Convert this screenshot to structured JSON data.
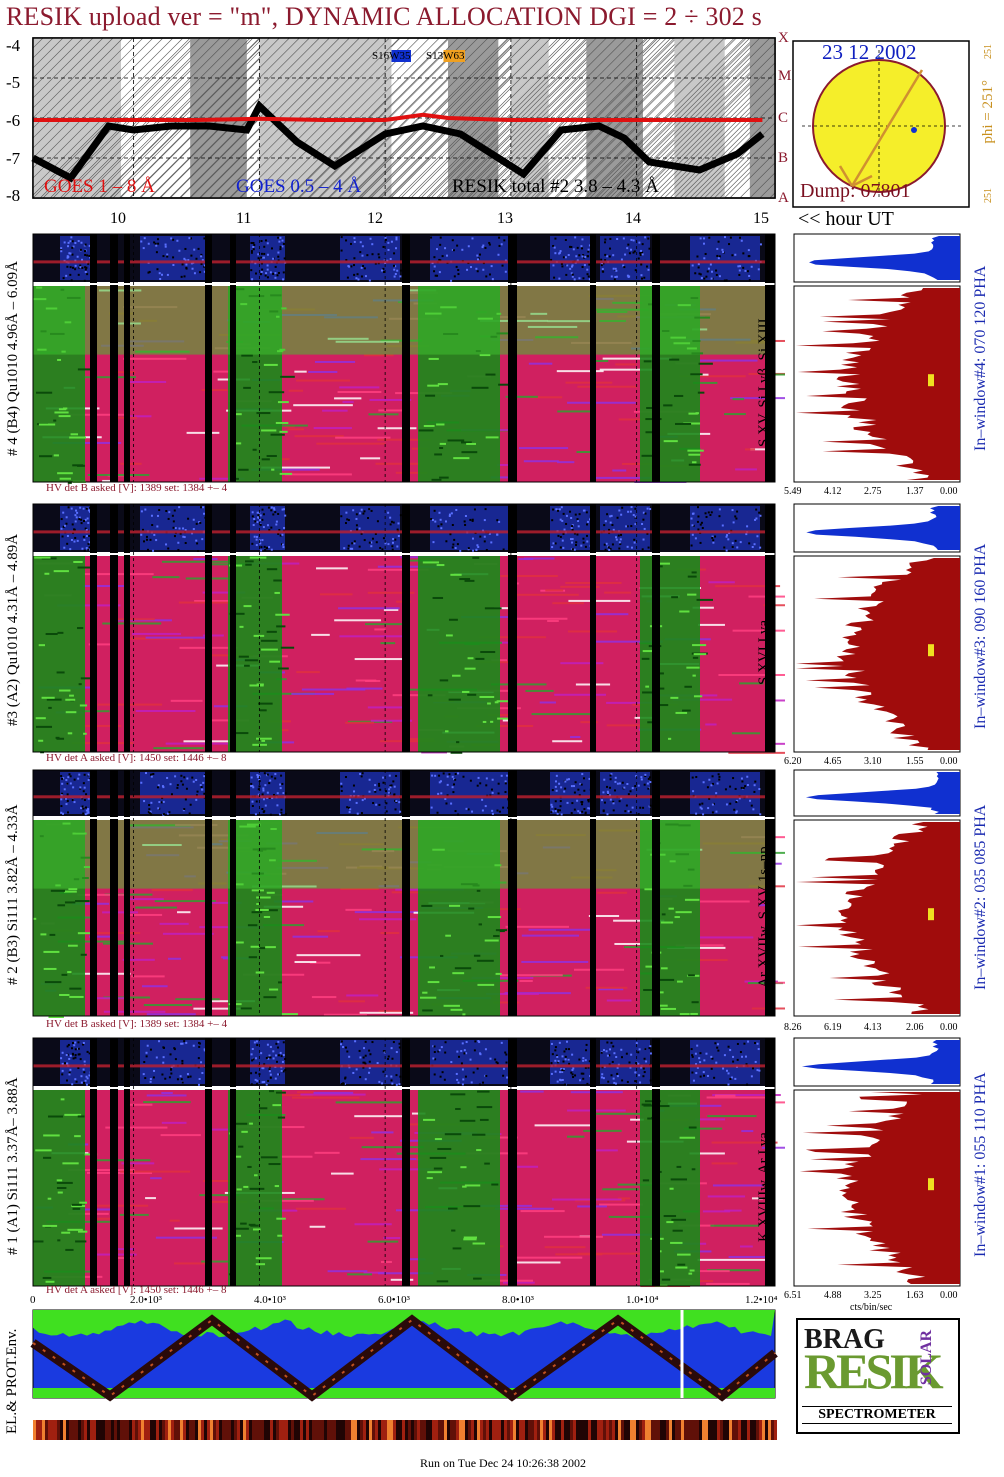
{
  "header": {
    "title": "RESIK upload ver = \"m\", DYNAMIC ALLOCATION  DGI =   2 ÷ 302 s"
  },
  "sun": {
    "date": "23 12 2002",
    "dump": "Dump: 07801",
    "phi_label": "phi = 251°",
    "phi_top": "251",
    "phi_bottom": "251",
    "region_1": "S16W35",
    "region_2": "S13W63",
    "region_1_color": "#1030d0",
    "region_2_color": "#f0a020"
  },
  "goes": {
    "legend_1": "GOES 1 – 8 Å",
    "legend_2": "GOES 0.5 – 4 Å",
    "legend_3": "RESIK total #2  3.8 – 4.3 Å",
    "legend_1_color": "#e01010",
    "legend_2_color": "#1020d0",
    "yticks": [
      "-4",
      "-5",
      "-6",
      "-7",
      "-8"
    ],
    "classes": [
      "X",
      "M",
      "C",
      "B",
      "A"
    ]
  },
  "hours": {
    "ticks": [
      "10",
      "11",
      "12",
      "13",
      "14",
      "15"
    ],
    "label": "<< hour UT"
  },
  "windows": [
    {
      "chan_label": "# 4 (B4) Qu1010 4.96Å – 6.09Å",
      "hv": "HV det B asked [V]:  1389 set:  1384  +–    4",
      "line_label": "S XV, Si Lyβ, Si XIII",
      "pha_label": "In–window#4:  070 120 PHA",
      "ticks": [
        "5.49",
        "4.12",
        "2.75",
        "1.37",
        "0.00"
      ]
    },
    {
      "chan_label": "#3 (A2) Qu1010  4.31Å – 4.89Å",
      "hv": "HV det A asked [V]:  1450 set:  1446  +–    8",
      "line_label": "S XVI Lya",
      "pha_label": "In–window#3:  090 160 PHA",
      "ticks": [
        "6.20",
        "4.65",
        "3.10",
        "1.55",
        "0.00"
      ]
    },
    {
      "chan_label": "# 2 (B3) Si111  3.82Å – 4.33Å",
      "hv": "HV det B asked [V]:  1389 set:  1384  +–    4",
      "line_label": "Ar XVIIw,  S XV 1s–np",
      "pha_label": "In–window#2:  035 085 PHA",
      "ticks": [
        "8.26",
        "6.19",
        "4.13",
        "2.06",
        "0.00"
      ]
    },
    {
      "chan_label": "# 1 (A1) Si111  3.37Å– 3.88Å",
      "hv": "HV det A asked [V]:  1450 set:  1446  +–    8",
      "line_label": "K XVIIIw, Ar Lya",
      "pha_label": "In–window#1:  055 110 PHA",
      "ticks": [
        "6.51",
        "4.88",
        "3.25",
        "1.63",
        "0.00"
      ]
    }
  ],
  "cts_label": "cts/bin/sec",
  "bottom_axis": {
    "ticks": [
      "0",
      "2.0•10³",
      "4.0•10³",
      "6.0•10³",
      "8.0•10³",
      "1.0•10⁴",
      "1.2•10⁴"
    ]
  },
  "env_label": "EL.& PROT.Env.",
  "logo": {
    "word_1": "BRAG",
    "word_2": "RESIK",
    "word_3": "SOLAR",
    "word_4": "SPECTROMETER"
  },
  "footer": "Run on Tue Dec 24 10:26:38 2002",
  "chart_data": {
    "type": "line",
    "title": "RESIK upload ver = \"m\", DYNAMIC ALLOCATION  DGI =   2 ÷ 302 s",
    "xlabel": "<< hour UT",
    "ylabel": "",
    "x_range_hours": [
      9.2,
      15.1
    ],
    "y_range_log": [
      -8,
      -4
    ],
    "series": [
      {
        "name": "GOES 1 – 8 Å",
        "x": [
          9.2,
          9.5,
          10.0,
          10.5,
          11.0,
          11.5,
          12.0,
          12.3,
          12.5,
          13.0,
          13.5,
          14.0,
          14.5,
          15.0
        ],
        "values": [
          -6.05,
          -6.05,
          -6.05,
          -6.05,
          -6.02,
          -6.05,
          -6.05,
          -5.92,
          -6.0,
          -6.05,
          -6.05,
          -6.05,
          -6.05,
          -6.05
        ]
      },
      {
        "name": "RESIK total #2  3.8 – 4.3 Å",
        "x": [
          9.2,
          9.5,
          9.8,
          10.0,
          10.3,
          10.6,
          10.9,
          11.0,
          11.3,
          11.6,
          12.0,
          12.3,
          12.6,
          12.9,
          13.1,
          13.4,
          13.7,
          13.9,
          14.1,
          14.5,
          14.8,
          15.0
        ],
        "values": [
          -7.0,
          -7.5,
          -6.2,
          -6.3,
          -6.2,
          -6.2,
          -6.3,
          -5.7,
          -6.6,
          -7.2,
          -6.4,
          -6.2,
          -6.4,
          -7.0,
          -7.4,
          -6.3,
          -6.2,
          -6.5,
          -7.1,
          -7.3,
          -6.9,
          -6.4
        ]
      }
    ],
    "pha_windows": [
      {
        "window": "#4",
        "range": [
          70,
          120
        ],
        "xticks": [
          5.49,
          4.12,
          2.75,
          1.37,
          0.0
        ]
      },
      {
        "window": "#3",
        "range": [
          90,
          160
        ],
        "xticks": [
          6.2,
          4.65,
          3.1,
          1.55,
          0.0
        ]
      },
      {
        "window": "#2",
        "range": [
          35,
          85
        ],
        "xticks": [
          8.26,
          6.19,
          4.13,
          2.06,
          0.0
        ]
      },
      {
        "window": "#1",
        "range": [
          55,
          110
        ],
        "xticks": [
          6.51,
          4.88,
          3.25,
          1.63,
          0.0
        ]
      }
    ],
    "sun_phi_deg": 251,
    "grid": true,
    "legend": "bottom"
  }
}
